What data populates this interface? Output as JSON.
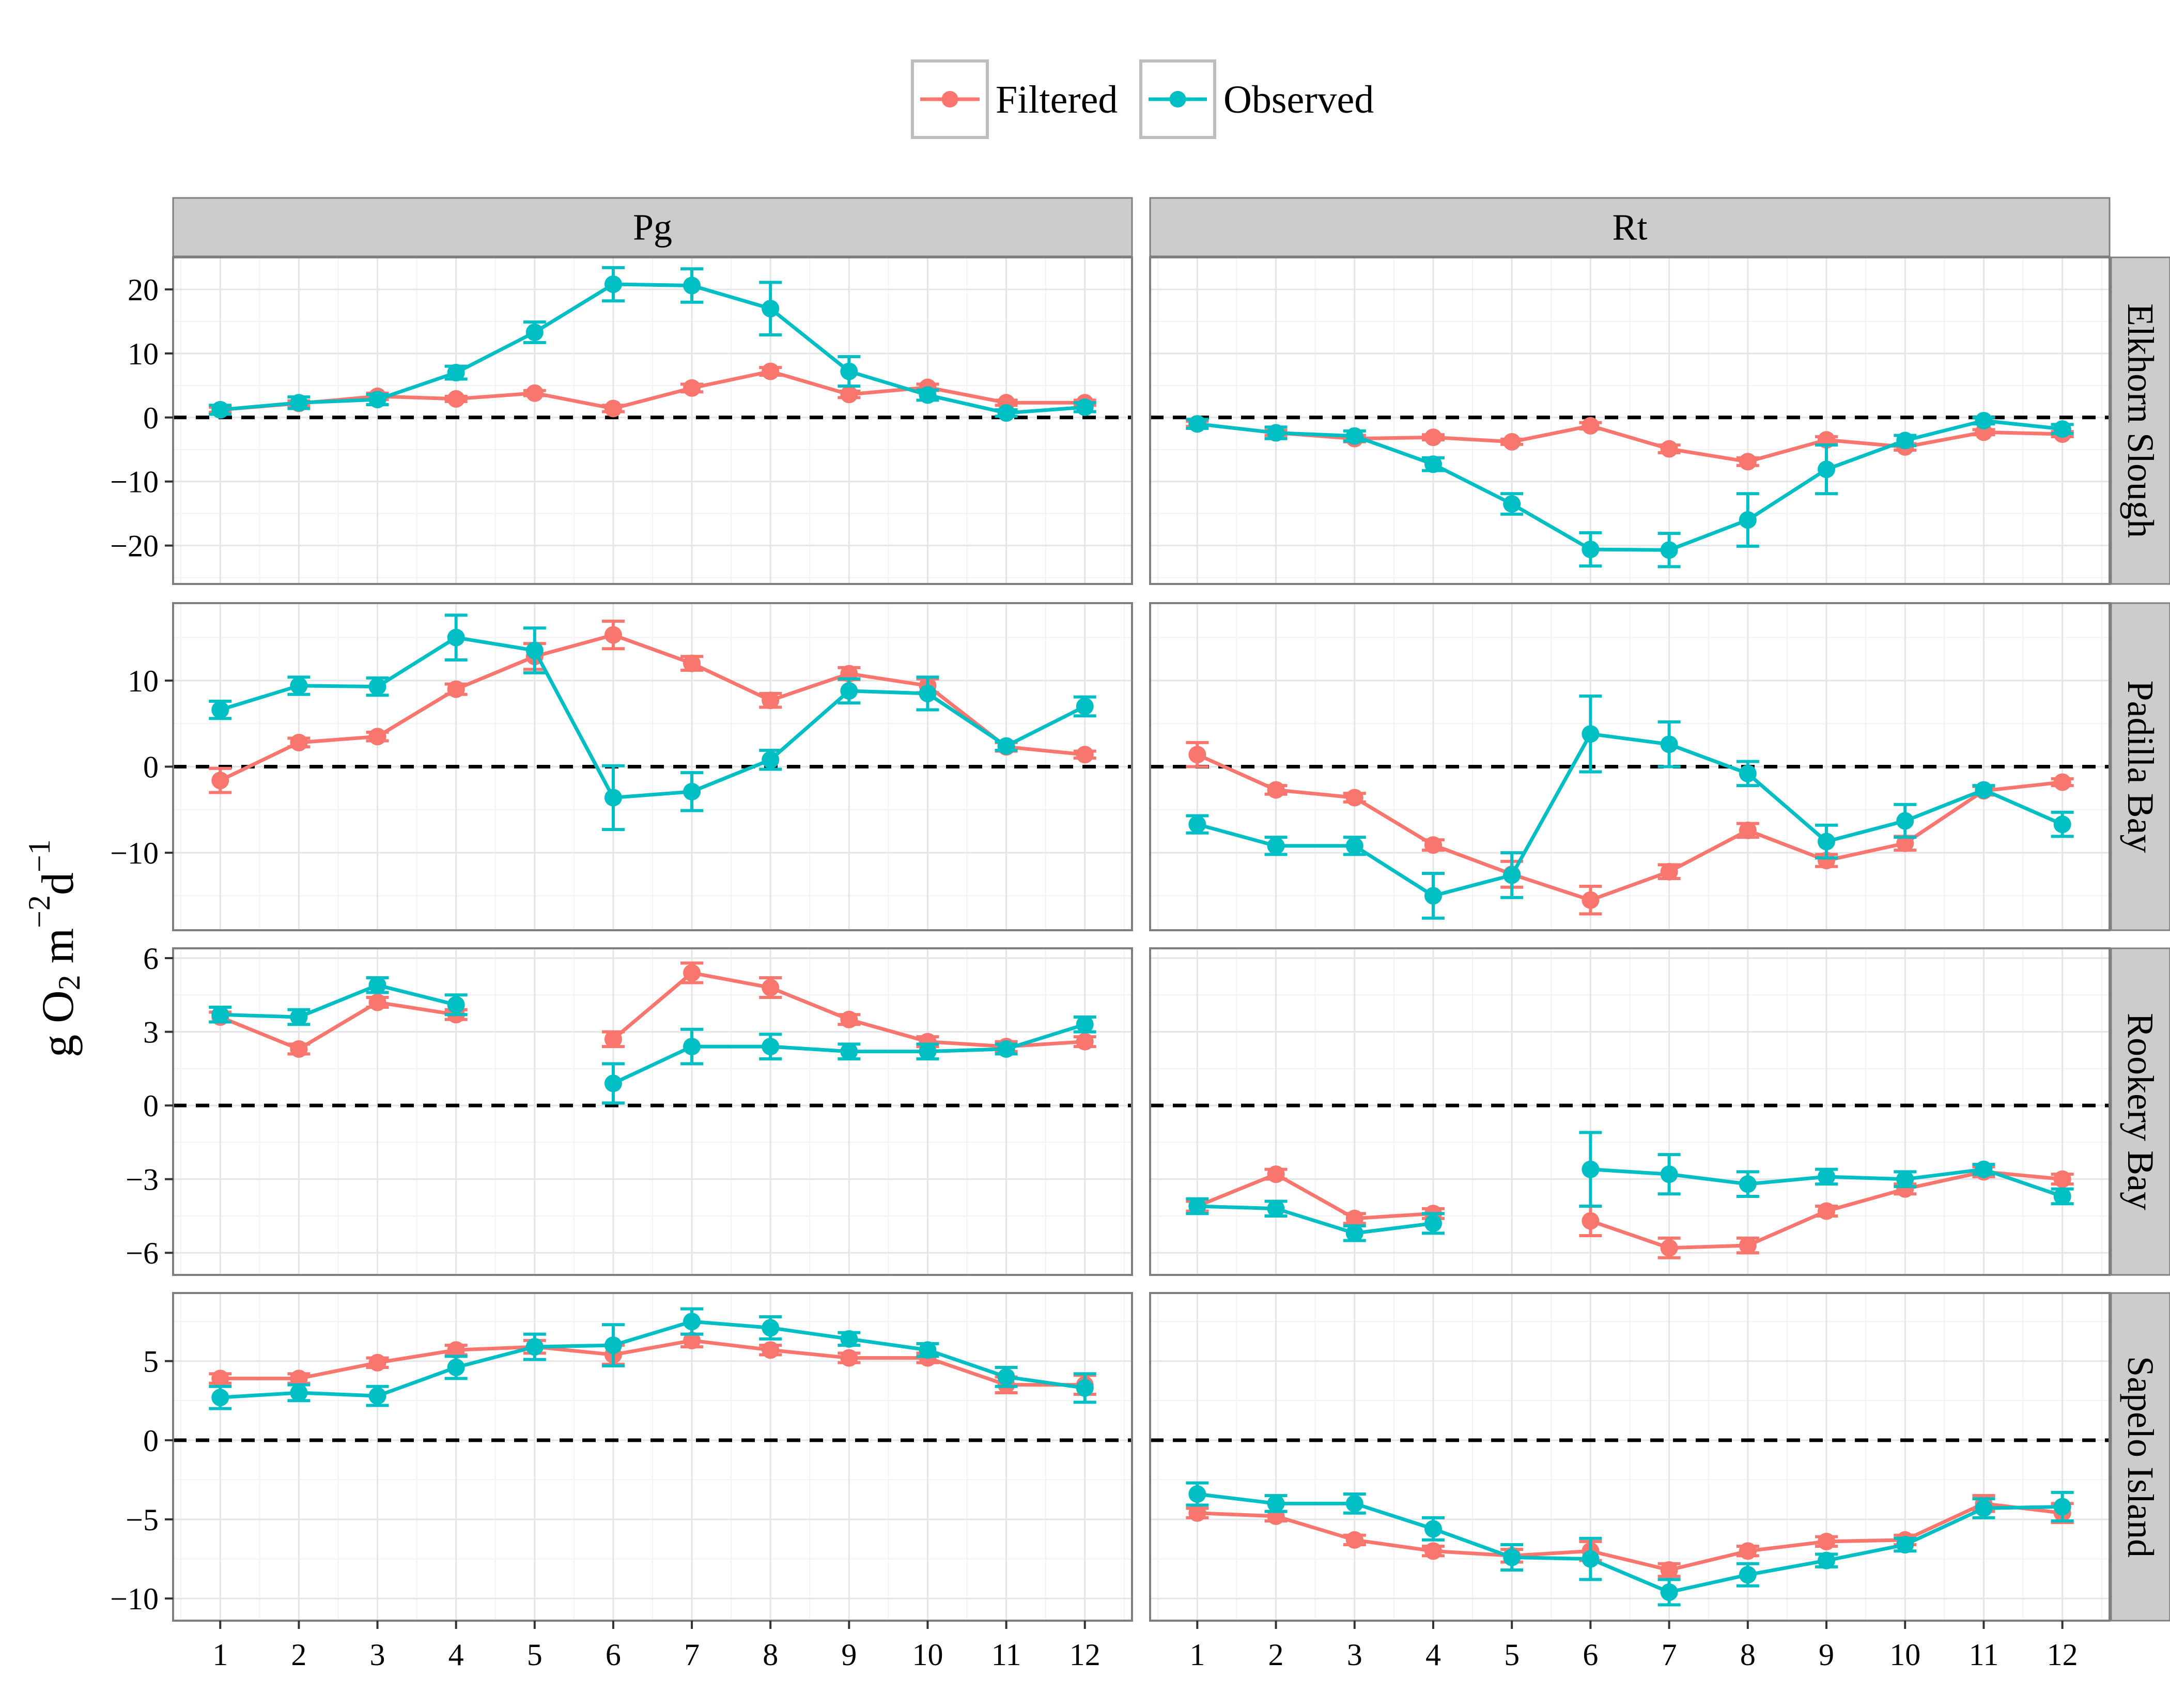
{
  "chart_data": {
    "type": "line",
    "ylabel": "g O2 m-2d-1",
    "ylabel_parts": {
      "base": "g O",
      "sub": "2",
      "mid1": " m",
      "sup1": "−2",
      "mid2": "d",
      "sup2": "−1"
    },
    "x": [
      1,
      2,
      3,
      4,
      5,
      6,
      7,
      8,
      9,
      10,
      11,
      12
    ],
    "x_ticks": [
      "1",
      "2",
      "3",
      "4",
      "5",
      "6",
      "7",
      "8",
      "9",
      "10",
      "11",
      "12"
    ],
    "legend": {
      "placement": "top-center",
      "entries": [
        {
          "label": "Filtered",
          "color": "#F8766D"
        },
        {
          "label": "Observed",
          "color": "#00BFC4"
        }
      ]
    },
    "columns": [
      "Pg",
      "Rt"
    ],
    "rows": [
      {
        "label": "Elkhorn Slough",
        "ylim": [
          -26,
          25
        ],
        "yticks": [
          -20,
          -10,
          0,
          10,
          20
        ],
        "ytick_labels": [
          "−20",
          "−10",
          "0",
          "10",
          "20"
        ],
        "Pg": {
          "Filtered": {
            "y": [
              1.2,
              2.2,
              3.3,
              2.9,
              3.8,
              1.4,
              4.6,
              7.2,
              3.6,
              4.7,
              2.3,
              2.3
            ],
            "err": [
              0.4,
              0.4,
              0.5,
              0.4,
              0.4,
              0.5,
              0.6,
              0.6,
              0.5,
              0.5,
              0.4,
              0.4
            ]
          },
          "Observed": {
            "y": [
              1.2,
              2.3,
              2.8,
              7.0,
              13.3,
              20.8,
              20.6,
              17.0,
              7.2,
              3.5,
              0.7,
              1.6
            ],
            "err": [
              0.7,
              0.9,
              0.8,
              1.0,
              1.6,
              2.6,
              2.6,
              4.1,
              2.3,
              0.8,
              0.5,
              0.7
            ]
          }
        },
        "Rt": {
          "Filtered": {
            "y": [
              -1.0,
              -2.4,
              -3.3,
              -3.1,
              -3.8,
              -1.3,
              -4.9,
              -6.9,
              -3.5,
              -4.6,
              -2.3,
              -2.6
            ],
            "err": [
              0.4,
              0.4,
              0.5,
              0.4,
              0.4,
              0.5,
              0.6,
              0.6,
              0.5,
              0.5,
              0.4,
              0.4
            ]
          },
          "Observed": {
            "y": [
              -1.0,
              -2.4,
              -2.9,
              -7.3,
              -13.5,
              -20.6,
              -20.7,
              -16.0,
              -8.1,
              -3.6,
              -0.5,
              -1.8
            ],
            "err": [
              0.7,
              0.9,
              0.8,
              1.0,
              1.6,
              2.6,
              2.6,
              4.1,
              3.8,
              0.8,
              0.5,
              0.7
            ]
          }
        }
      },
      {
        "label": "Padilla Bay",
        "ylim": [
          -19,
          19
        ],
        "yticks": [
          -10,
          0,
          10
        ],
        "ytick_labels": [
          "−10",
          "0",
          "10"
        ],
        "Pg": {
          "Filtered": {
            "y": [
              -1.6,
              2.8,
              3.5,
              9.0,
              12.8,
              15.3,
              12.0,
              7.7,
              10.8,
              9.4,
              2.3,
              1.4
            ],
            "err": [
              1.4,
              0.5,
              0.5,
              0.6,
              1.5,
              1.6,
              0.8,
              0.8,
              0.7,
              0.8,
              0.5,
              0.4
            ]
          },
          "Observed": {
            "y": [
              6.6,
              9.4,
              9.3,
              15.0,
              13.5,
              -3.6,
              -2.9,
              0.8,
              8.8,
              8.5,
              2.4,
              7.0
            ],
            "err": [
              1.0,
              1.0,
              1.0,
              2.6,
              2.6,
              3.7,
              2.2,
              1.1,
              1.4,
              1.9,
              0.5,
              1.1
            ]
          }
        },
        "Rt": {
          "Filtered": {
            "y": [
              1.4,
              -2.7,
              -3.6,
              -9.1,
              -12.5,
              -15.5,
              -12.2,
              -7.4,
              -10.9,
              -8.9,
              -2.8,
              -1.8
            ],
            "err": [
              1.4,
              0.5,
              0.5,
              0.6,
              1.5,
              1.6,
              0.8,
              0.8,
              0.7,
              0.8,
              0.5,
              0.4
            ]
          },
          "Observed": {
            "y": [
              -6.7,
              -9.2,
              -9.2,
              -15.0,
              -12.6,
              3.8,
              2.6,
              -0.8,
              -8.7,
              -6.3,
              -2.7,
              -6.7
            ],
            "err": [
              1.0,
              1.0,
              1.0,
              2.6,
              2.6,
              4.4,
              2.6,
              1.4,
              1.9,
              1.9,
              0.5,
              1.4
            ]
          }
        }
      },
      {
        "label": "Rookery Bay",
        "ylim": [
          -6.9,
          6.4
        ],
        "yticks": [
          -6,
          -3,
          0,
          3,
          6
        ],
        "ytick_labels": [
          "−6",
          "−3",
          "0",
          "3",
          "6"
        ],
        "Pg": {
          "Filtered": {
            "y": [
              3.6,
              2.3,
              4.2,
              3.7,
              null,
              2.7,
              5.4,
              4.8,
              3.5,
              2.6,
              2.4,
              2.6
            ],
            "err": [
              0.2,
              0.2,
              0.2,
              0.2,
              null,
              0.3,
              0.4,
              0.4,
              0.2,
              0.2,
              0.2,
              0.2
            ]
          },
          "Observed": {
            "y": [
              3.7,
              3.6,
              4.9,
              4.1,
              null,
              0.9,
              2.4,
              2.4,
              2.2,
              2.2,
              2.3,
              3.3
            ],
            "err": [
              0.3,
              0.3,
              0.3,
              0.4,
              null,
              0.8,
              0.7,
              0.5,
              0.3,
              0.3,
              0.2,
              0.3
            ]
          }
        },
        "Rt": {
          "Filtered": {
            "y": [
              -4.1,
              -2.8,
              -4.6,
              -4.4,
              null,
              -4.7,
              -5.8,
              -5.7,
              -4.3,
              -3.4,
              -2.7,
              -3.0
            ],
            "err": [
              0.2,
              0.2,
              0.2,
              0.2,
              null,
              0.6,
              0.4,
              0.3,
              0.2,
              0.2,
              0.2,
              0.2
            ]
          },
          "Observed": {
            "y": [
              -4.1,
              -4.2,
              -5.2,
              -4.8,
              null,
              -2.6,
              -2.8,
              -3.2,
              -2.9,
              -3.0,
              -2.6,
              -3.7
            ],
            "err": [
              0.3,
              0.3,
              0.3,
              0.4,
              null,
              1.5,
              0.8,
              0.5,
              0.3,
              0.3,
              0.2,
              0.3
            ]
          }
        }
      },
      {
        "label": "Sapelo Island",
        "ylim": [
          -11.4,
          9.3
        ],
        "yticks": [
          -10,
          -5,
          0,
          5
        ],
        "ytick_labels": [
          "−10",
          "−5",
          "0",
          "5"
        ],
        "Pg": {
          "Filtered": {
            "y": [
              3.9,
              3.9,
              4.9,
              5.7,
              5.9,
              5.4,
              6.3,
              5.7,
              5.2,
              5.2,
              3.5,
              3.5
            ],
            "err": [
              0.3,
              0.3,
              0.3,
              0.3,
              0.4,
              0.6,
              0.4,
              0.3,
              0.3,
              0.3,
              0.5,
              0.6
            ]
          },
          "Observed": {
            "y": [
              2.7,
              3.0,
              2.8,
              4.6,
              5.9,
              6.0,
              7.5,
              7.1,
              6.4,
              5.7,
              4.0,
              3.3
            ],
            "err": [
              0.7,
              0.5,
              0.6,
              0.7,
              0.8,
              1.3,
              0.8,
              0.7,
              0.4,
              0.4,
              0.6,
              0.9
            ]
          }
        },
        "Rt": {
          "Filtered": {
            "y": [
              -4.6,
              -4.8,
              -6.3,
              -7.0,
              -7.3,
              -7.0,
              -8.2,
              -7.0,
              -6.4,
              -6.3,
              -4.0,
              -4.6
            ],
            "err": [
              0.3,
              0.3,
              0.3,
              0.3,
              0.4,
              0.6,
              0.4,
              0.3,
              0.3,
              0.3,
              0.5,
              0.6
            ]
          },
          "Observed": {
            "y": [
              -3.4,
              -4.0,
              -4.0,
              -5.6,
              -7.4,
              -7.5,
              -9.6,
              -8.5,
              -7.6,
              -6.6,
              -4.3,
              -4.2
            ],
            "err": [
              0.7,
              0.5,
              0.6,
              0.7,
              0.8,
              1.3,
              0.8,
              0.7,
              0.4,
              0.4,
              0.6,
              0.9
            ]
          }
        }
      }
    ],
    "grid": true,
    "zero_line": "dashed"
  }
}
